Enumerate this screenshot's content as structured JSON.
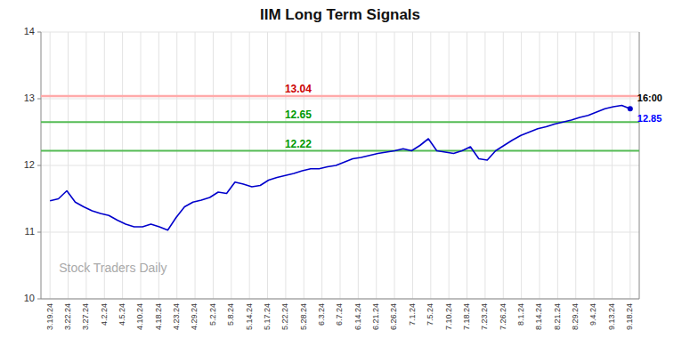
{
  "chart_data": {
    "type": "line",
    "title": "IIM Long Term Signals",
    "color": "#0000cc",
    "marker": "endpoint",
    "grid": true,
    "xlim": [
      -0.5,
      32.5
    ],
    "xticks": [
      {
        "value": 0,
        "label": "3.19.24"
      },
      {
        "value": 1,
        "label": "3.22.24"
      },
      {
        "value": 2,
        "label": "3.27.24"
      },
      {
        "value": 3,
        "label": "4.2.24"
      },
      {
        "value": 4,
        "label": "4.5.24"
      },
      {
        "value": 5,
        "label": "4.10.24"
      },
      {
        "value": 6,
        "label": "4.18.24"
      },
      {
        "value": 7,
        "label": "4.23.24"
      },
      {
        "value": 8,
        "label": "4.29.24"
      },
      {
        "value": 9,
        "label": "5.2.24"
      },
      {
        "value": 10,
        "label": "5.8.24"
      },
      {
        "value": 11,
        "label": "5.14.24"
      },
      {
        "value": 12,
        "label": "5.17.24"
      },
      {
        "value": 13,
        "label": "5.22.24"
      },
      {
        "value": 14,
        "label": "5.28.24"
      },
      {
        "value": 15,
        "label": "6.3.24"
      },
      {
        "value": 16,
        "label": "6.7.24"
      },
      {
        "value": 17,
        "label": "6.14.24"
      },
      {
        "value": 18,
        "label": "6.21.24"
      },
      {
        "value": 19,
        "label": "6.26.24"
      },
      {
        "value": 20,
        "label": "7.1.24"
      },
      {
        "value": 21,
        "label": "7.5.24"
      },
      {
        "value": 22,
        "label": "7.10.24"
      },
      {
        "value": 23,
        "label": "7.18.24"
      },
      {
        "value": 24,
        "label": "7.23.24"
      },
      {
        "value": 25,
        "label": "7.26.24"
      },
      {
        "value": 26,
        "label": "8.1.24"
      },
      {
        "value": 27,
        "label": "8.14.24"
      },
      {
        "value": 28,
        "label": "8.21.24"
      },
      {
        "value": 29,
        "label": "8.29.24"
      },
      {
        "value": 30,
        "label": "9.4.24"
      },
      {
        "value": 31,
        "label": "9.13.24"
      },
      {
        "value": 32,
        "label": "9.18.24"
      }
    ],
    "ylim": [
      10,
      14
    ],
    "yticks": [
      10,
      11,
      12,
      13,
      14
    ],
    "x": [
      0,
      0.4638,
      0.9275,
      1.3913,
      1.8551,
      2.3188,
      2.7826,
      3.2464,
      3.7101,
      4.1739,
      4.6377,
      5.1014,
      5.5652,
      6.029,
      6.4928,
      6.9565,
      7.4203,
      7.8841,
      8.3478,
      8.8116,
      9.2754,
      9.7391,
      10.2029,
      10.6667,
      11.1304,
      11.5942,
      12.058,
      12.5217,
      12.9855,
      13.4493,
      13.913,
      14.3768,
      14.8406,
      15.3043,
      15.7681,
      16.2319,
      16.6957,
      17.1594,
      17.6232,
      18.087,
      18.5507,
      19.0145,
      19.4783,
      19.942,
      20.4058,
      20.8696,
      21.3333,
      21.7971,
      22.2609,
      22.7246,
      23.1884,
      23.6522,
      24.1159,
      24.5797,
      25.0435,
      25.5072,
      25.971,
      26.4348,
      26.8986,
      27.3623,
      27.8261,
      28.2899,
      28.7536,
      29.2174,
      29.6812,
      30.1449,
      30.6087,
      31.0725,
      31.5362,
      32
    ],
    "values": [
      11.47,
      11.5,
      11.62,
      11.45,
      11.38,
      11.32,
      11.28,
      11.25,
      11.18,
      11.12,
      11.08,
      11.08,
      11.12,
      11.08,
      11.03,
      11.22,
      11.38,
      11.45,
      11.48,
      11.52,
      11.6,
      11.58,
      11.75,
      11.72,
      11.68,
      11.7,
      11.78,
      11.82,
      11.85,
      11.88,
      11.92,
      11.95,
      11.95,
      11.98,
      12.0,
      12.05,
      12.1,
      12.12,
      12.15,
      12.18,
      12.2,
      12.22,
      12.25,
      12.22,
      12.3,
      12.4,
      12.22,
      12.2,
      12.18,
      12.22,
      12.28,
      12.1,
      12.08,
      12.22,
      12.3,
      12.38,
      12.45,
      12.5,
      12.55,
      12.58,
      12.62,
      12.65,
      12.68,
      12.72,
      12.75,
      12.8,
      12.85,
      12.88,
      12.9,
      12.85
    ],
    "reference_lines": [
      {
        "value": 13.04,
        "label": "13.04",
        "color": "#ffaaaa",
        "label_color": "#cc0000"
      },
      {
        "value": 12.65,
        "label": "12.65",
        "color": "#55bb55",
        "label_color": "#009900"
      },
      {
        "value": 12.22,
        "label": "12.22",
        "color": "#55bb55",
        "label_color": "#009900"
      }
    ],
    "annotations": [
      {
        "text": "16:00",
        "color": "#000000"
      },
      {
        "text": "12.85",
        "color": "#0000ff"
      }
    ],
    "watermark": "Stock Traders Daily",
    "watermark_color": "#aaaaaa"
  }
}
